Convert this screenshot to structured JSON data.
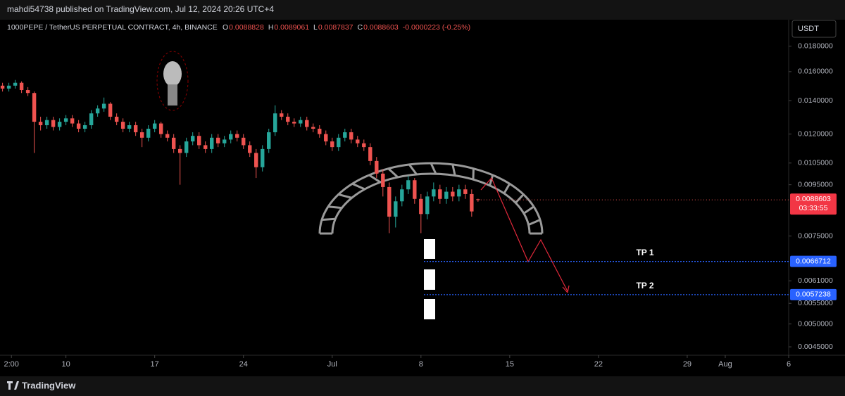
{
  "header": {
    "attribution": "mahdi54738 published on TradingView.com, Jul 12, 2024 20:26 UTC+4"
  },
  "footer": {
    "brand": "TradingView"
  },
  "chart_data": {
    "type": "candlestick",
    "title": "1000PEPE / TetherUS PERPETUAL CONTRACT, 4h, BINANCE",
    "ohlc_legend": [
      {
        "label": "O",
        "value": "0.0088828"
      },
      {
        "label": "H",
        "value": "0.0089061"
      },
      {
        "label": "L",
        "value": "0.0087837"
      },
      {
        "label": "C",
        "value": "0.0088603"
      }
    ],
    "change": "-0.0000223 (-0.25%)",
    "currency": "USDT",
    "countdown": "03:33:55",
    "log_scale": true,
    "grid": false,
    "up_color": "#26a69a",
    "down_color": "#ef5350",
    "xlim": [
      4.8,
      67
    ],
    "xticks": [
      {
        "value": 5.7,
        "label": "2:00"
      },
      {
        "value": 10,
        "label": "10"
      },
      {
        "value": 17,
        "label": "17"
      },
      {
        "value": 24,
        "label": "24"
      },
      {
        "value": 31,
        "label": "Jul"
      },
      {
        "value": 38,
        "label": "8"
      },
      {
        "value": 45,
        "label": "15"
      },
      {
        "value": 52,
        "label": "22"
      },
      {
        "value": 59,
        "label": "29"
      },
      {
        "value": 62,
        "label": "Aug"
      },
      {
        "value": 67,
        "label": "6"
      }
    ],
    "ylim": [
      0.00426,
      0.0202
    ],
    "yticks": [
      {
        "value": 0.018,
        "label": "0.0180000"
      },
      {
        "value": 0.016,
        "label": "0.0160000"
      },
      {
        "value": 0.014,
        "label": "0.0140000"
      },
      {
        "value": 0.012,
        "label": "0.0120000"
      },
      {
        "value": 0.0105,
        "label": "0.0105000"
      },
      {
        "value": 0.0095,
        "label": "0.0095000"
      },
      {
        "value": 0.0075,
        "label": "0.0075000"
      },
      {
        "value": 0.0061,
        "label": "0.0061000"
      },
      {
        "value": 0.0055,
        "label": "0.0055000"
      },
      {
        "value": 0.005,
        "label": "0.0050000"
      },
      {
        "value": 0.0045,
        "label": "0.0045000"
      }
    ],
    "hlines": [
      {
        "value": 0.0066712,
        "label": "TP 1",
        "color": "#2962ff"
      },
      {
        "value": 0.0057238,
        "label": "TP 2",
        "color": "#2962ff"
      }
    ],
    "x": [
      5,
      5.5,
      6,
      6.5,
      7,
      7.5,
      8,
      8.5,
      9,
      9.5,
      10,
      10.5,
      11,
      11.5,
      12,
      12.5,
      13,
      13.5,
      14,
      14.5,
      15,
      15.5,
      16,
      16.5,
      17,
      17.5,
      18,
      18.5,
      19,
      19.5,
      20,
      20.5,
      21,
      21.5,
      22,
      22.5,
      23,
      23.5,
      24,
      24.5,
      25,
      25.5,
      26,
      26.5,
      27,
      27.5,
      28,
      28.5,
      29,
      29.5,
      30,
      30.5,
      31,
      31.5,
      32,
      32.5,
      33,
      33.5,
      34,
      34.5,
      35,
      35.5,
      36,
      36.5,
      37,
      37.5,
      38,
      38.5,
      39,
      39.5,
      40,
      40.5,
      41,
      41.5,
      42,
      42.5
    ],
    "open": [
      0.015,
      0.0148,
      0.015,
      0.0152,
      0.0147,
      0.0145,
      0.0127,
      0.0125,
      0.0128,
      0.0124,
      0.0127,
      0.0129,
      0.0126,
      0.0123,
      0.0125,
      0.0132,
      0.0135,
      0.0138,
      0.013,
      0.0127,
      0.0123,
      0.0125,
      0.0121,
      0.0118,
      0.0123,
      0.0126,
      0.012,
      0.0118,
      0.0112,
      0.011,
      0.0116,
      0.0119,
      0.0114,
      0.0112,
      0.0118,
      0.0115,
      0.0117,
      0.012,
      0.0118,
      0.0114,
      0.011,
      0.0103,
      0.0112,
      0.0121,
      0.0132,
      0.013,
      0.0127,
      0.0126,
      0.0128,
      0.0124,
      0.0123,
      0.012,
      0.0116,
      0.0113,
      0.0118,
      0.0121,
      0.0117,
      0.0115,
      0.0113,
      0.0106,
      0.01,
      0.0094,
      0.0082,
      0.0088,
      0.0093,
      0.0097,
      0.0089,
      0.0083,
      0.009,
      0.0093,
      0.0089,
      0.0092,
      0.009,
      0.0093,
      0.0091,
      0.0088828
    ],
    "high": [
      0.0152,
      0.0152,
      0.0154,
      0.0153,
      0.0149,
      0.0146,
      0.013,
      0.013,
      0.013,
      0.0129,
      0.0131,
      0.0131,
      0.0128,
      0.0127,
      0.0134,
      0.0137,
      0.0142,
      0.0139,
      0.0132,
      0.0129,
      0.0127,
      0.0127,
      0.0123,
      0.0125,
      0.0128,
      0.0127,
      0.0122,
      0.012,
      0.0114,
      0.0118,
      0.0121,
      0.0121,
      0.0116,
      0.012,
      0.012,
      0.0119,
      0.0122,
      0.0122,
      0.012,
      0.0116,
      0.0112,
      0.0114,
      0.0123,
      0.0137,
      0.0134,
      0.0132,
      0.0129,
      0.013,
      0.013,
      0.0126,
      0.0125,
      0.0122,
      0.0118,
      0.012,
      0.0123,
      0.0123,
      0.0119,
      0.0117,
      0.0115,
      0.0108,
      0.0102,
      0.0096,
      0.009,
      0.0095,
      0.0099,
      0.0098,
      0.0091,
      0.0092,
      0.0096,
      0.0095,
      0.0094,
      0.0094,
      0.0095,
      0.0095,
      0.0093,
      0.0089061
    ],
    "low": [
      0.0146,
      0.0146,
      0.0148,
      0.0145,
      0.0143,
      0.011,
      0.0122,
      0.0123,
      0.0122,
      0.0122,
      0.0125,
      0.0124,
      0.0121,
      0.0121,
      0.0123,
      0.013,
      0.0133,
      0.0128,
      0.0125,
      0.0121,
      0.0121,
      0.0119,
      0.0113,
      0.0116,
      0.0121,
      0.0118,
      0.0116,
      0.011,
      0.0095,
      0.0108,
      0.0114,
      0.0112,
      0.011,
      0.011,
      0.0113,
      0.0113,
      0.0115,
      0.0116,
      0.0112,
      0.0108,
      0.0098,
      0.0101,
      0.011,
      0.0119,
      0.0128,
      0.0125,
      0.0124,
      0.0124,
      0.0122,
      0.0121,
      0.0118,
      0.0114,
      0.0111,
      0.0111,
      0.0116,
      0.0115,
      0.0113,
      0.0111,
      0.0104,
      0.0098,
      0.009,
      0.0076,
      0.0078,
      0.0086,
      0.0091,
      0.0087,
      0.0076,
      0.0081,
      0.0088,
      0.0087,
      0.0087,
      0.0088,
      0.0088,
      0.0089,
      0.0082,
      0.0087837
    ],
    "close": [
      0.0148,
      0.015,
      0.0152,
      0.0147,
      0.0145,
      0.0127,
      0.0125,
      0.0128,
      0.0124,
      0.0127,
      0.0129,
      0.0126,
      0.0123,
      0.0125,
      0.0132,
      0.0135,
      0.0138,
      0.013,
      0.0127,
      0.0123,
      0.0125,
      0.0121,
      0.0118,
      0.0123,
      0.0126,
      0.012,
      0.0118,
      0.0112,
      0.011,
      0.0116,
      0.0119,
      0.0114,
      0.0112,
      0.0118,
      0.0115,
      0.0117,
      0.012,
      0.0118,
      0.0114,
      0.011,
      0.0103,
      0.0112,
      0.0121,
      0.0132,
      0.013,
      0.0127,
      0.0126,
      0.0128,
      0.0124,
      0.0123,
      0.012,
      0.0116,
      0.0113,
      0.0118,
      0.0121,
      0.0117,
      0.0115,
      0.0113,
      0.0106,
      0.01,
      0.0094,
      0.0082,
      0.0088,
      0.0093,
      0.0097,
      0.0089,
      0.0083,
      0.009,
      0.0093,
      0.0089,
      0.0092,
      0.009,
      0.0093,
      0.0091,
      0.0084,
      0.0088603
    ]
  }
}
